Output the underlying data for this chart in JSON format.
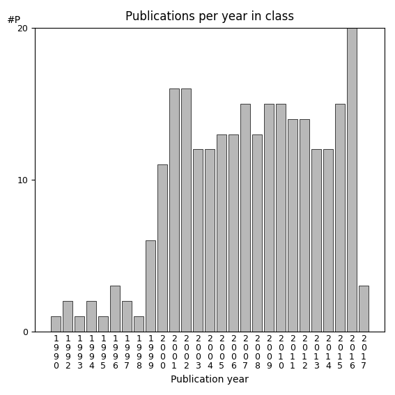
{
  "title": "Publications per year in class",
  "xlabel": "Publication year",
  "ylabel_text": "#P",
  "years": [
    "1990",
    "1992",
    "1993",
    "1994",
    "1995",
    "1996",
    "1997",
    "1998",
    "1999",
    "2000",
    "2001",
    "2002",
    "2003",
    "2004",
    "2005",
    "2006",
    "2007",
    "2008",
    "2009",
    "2010",
    "2011",
    "2012",
    "2013",
    "2014",
    "2015",
    "2016",
    "2017"
  ],
  "values": [
    1,
    2,
    1,
    2,
    1,
    3,
    2,
    1,
    6,
    11,
    16,
    16,
    12,
    12,
    13,
    13,
    15,
    13,
    15,
    15,
    14,
    14,
    12,
    12,
    15,
    20,
    3
  ],
  "bar_color": "#b8b8b8",
  "bar_edgecolor": "#000000",
  "ylim": [
    0,
    20
  ],
  "yticks": [
    0,
    10,
    20
  ],
  "background_color": "#ffffff",
  "title_fontsize": 12,
  "label_fontsize": 10,
  "tick_fontsize": 9,
  "ylabel_fontsize": 10
}
